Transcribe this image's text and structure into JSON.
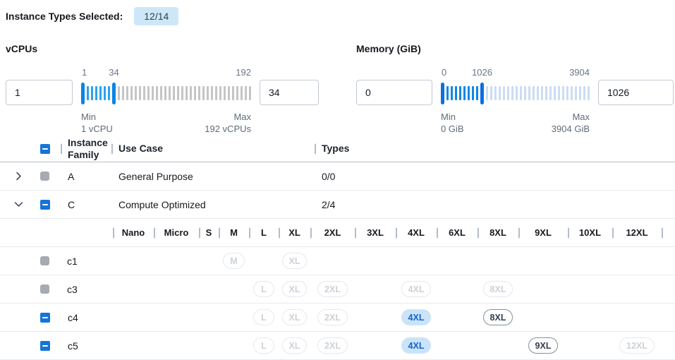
{
  "header": {
    "label": "Instance Types Selected:",
    "badge": "12/14"
  },
  "filters": [
    {
      "title": "vCPUs",
      "from_value": "1",
      "to_value": "34",
      "range": {
        "min": 1,
        "current": 34,
        "max": 192
      },
      "min_label": "Min",
      "min_text": "1 vCPU",
      "max_label": "Max",
      "max_text": "192 vCPUs",
      "colors": {
        "handle": "#0b84e3",
        "on": "#2ba2ea",
        "off": "#c5c5c5"
      }
    },
    {
      "title": "Memory (GiB)",
      "from_value": "0",
      "to_value": "1026",
      "range": {
        "min": 0,
        "current": 1026,
        "max": 3904
      },
      "min_label": "Min",
      "min_text": "0 GiB",
      "max_label": "Max",
      "max_text": "3904 GiB",
      "colors": {
        "handle": "#0b6fe3",
        "on": "#0d87e8",
        "off": "#ccdcf2"
      }
    }
  ],
  "table": {
    "headers": {
      "family": "Instance Family",
      "use_case": "Use Case",
      "types": "Types"
    },
    "family_rows": [
      {
        "name": "A",
        "use_case": "General Purpose",
        "types": "0/0",
        "expanded": false,
        "checkbox": "disabled"
      },
      {
        "name": "C",
        "use_case": "Compute Optimized",
        "types": "2/4",
        "expanded": true,
        "checkbox": "indeterminate"
      }
    ],
    "sizes": [
      "Nano",
      "Micro",
      "S",
      "M",
      "L",
      "XL",
      "2XL",
      "3XL",
      "4XL",
      "6XL",
      "8XL",
      "9XL",
      "10XL",
      "12XL"
    ],
    "instance_rows": [
      {
        "name": "c1",
        "checkbox": "disabled",
        "pills": {
          "M": "disabled",
          "XL": "disabled"
        }
      },
      {
        "name": "c3",
        "checkbox": "disabled",
        "pills": {
          "L": "disabled",
          "XL": "disabled",
          "2XL": "disabled",
          "4XL": "disabled",
          "8XL": "disabled"
        }
      },
      {
        "name": "c4",
        "checkbox": "indeterminate",
        "pills": {
          "L": "disabled",
          "XL": "disabled",
          "2XL": "disabled",
          "4XL": "selected",
          "8XL": "enabled"
        }
      },
      {
        "name": "c5",
        "checkbox": "indeterminate",
        "pills": {
          "L": "disabled",
          "XL": "disabled",
          "2XL": "disabled",
          "4XL": "selected",
          "9XL": "enabled",
          "12XL": "disabled"
        }
      }
    ]
  },
  "colors": {
    "accent": "#1574d8",
    "badge_bg": "#cde7f8",
    "pill_selected_bg": "#cbe3f9",
    "pill_selected_text": "#1064c8"
  }
}
